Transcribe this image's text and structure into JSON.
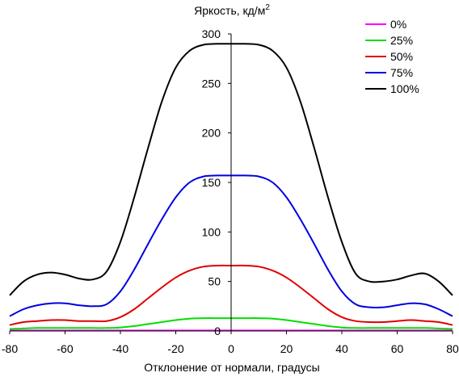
{
  "chart_data": {
    "type": "line",
    "title": "",
    "ylabel_main": "Яркость, кд/м",
    "ylabel_sup": "2",
    "xlabel": "Отклонение от нормали, градусы",
    "xlim": [
      -80,
      80
    ],
    "ylim": [
      0,
      300
    ],
    "x_ticks": [
      -80,
      -60,
      -40,
      -20,
      0,
      20,
      40,
      60,
      80
    ],
    "y_ticks": [
      0,
      50,
      100,
      150,
      200,
      250,
      300
    ],
    "grid": false,
    "legend_position": "top-right",
    "x": [
      -80,
      -75,
      -70,
      -65,
      -60,
      -55,
      -50,
      -45,
      -40,
      -35,
      -30,
      -25,
      -20,
      -15,
      -10,
      -5,
      0,
      5,
      10,
      15,
      20,
      25,
      30,
      35,
      40,
      45,
      50,
      55,
      60,
      65,
      70,
      75,
      80
    ],
    "series": [
      {
        "name": "0%",
        "color": "#ff00ff",
        "values": [
          0.5,
          0.5,
          0.5,
          0.5,
          0.5,
          0.5,
          0.5,
          0.5,
          0.5,
          0.5,
          0.5,
          0.5,
          0.5,
          0.5,
          0.5,
          0.5,
          0.5,
          0.5,
          0.5,
          0.5,
          0.5,
          0.5,
          0.5,
          0.5,
          0.5,
          0.5,
          0.5,
          0.5,
          0.5,
          0.5,
          0.5,
          0.5,
          0.5
        ]
      },
      {
        "name": "25%",
        "color": "#00e000",
        "values": [
          2,
          2.5,
          3,
          3,
          3,
          3,
          3,
          3,
          3.5,
          5,
          7,
          9,
          11,
          12.5,
          13,
          13,
          13,
          13,
          13,
          12.5,
          11,
          9,
          7,
          5,
          3.5,
          3,
          3,
          3,
          3,
          3,
          3,
          2.5,
          2
        ]
      },
      {
        "name": "50%",
        "color": "#e00000",
        "values": [
          6,
          9,
          10,
          11,
          11,
          10,
          10,
          10,
          14,
          22,
          33,
          44,
          54,
          61,
          65,
          66,
          66,
          66,
          65,
          61,
          54,
          44,
          33,
          22,
          14,
          10,
          9,
          9,
          10,
          11,
          10,
          9,
          6
        ]
      },
      {
        "name": "75%",
        "color": "#0000e0",
        "values": [
          15,
          22,
          26,
          28,
          28,
          26,
          25,
          27,
          40,
          62,
          88,
          113,
          135,
          150,
          156,
          157,
          157,
          157,
          156,
          150,
          135,
          113,
          88,
          62,
          40,
          27,
          24,
          24,
          26,
          28,
          27,
          22,
          15
        ]
      },
      {
        "name": "100%",
        "color": "#000000",
        "values": [
          36,
          50,
          57,
          59,
          57,
          53,
          52,
          60,
          90,
          135,
          185,
          232,
          266,
          283,
          289,
          290,
          290,
          290,
          289,
          283,
          266,
          232,
          185,
          135,
          90,
          58,
          50,
          50,
          52,
          56,
          58,
          50,
          36
        ]
      }
    ]
  }
}
